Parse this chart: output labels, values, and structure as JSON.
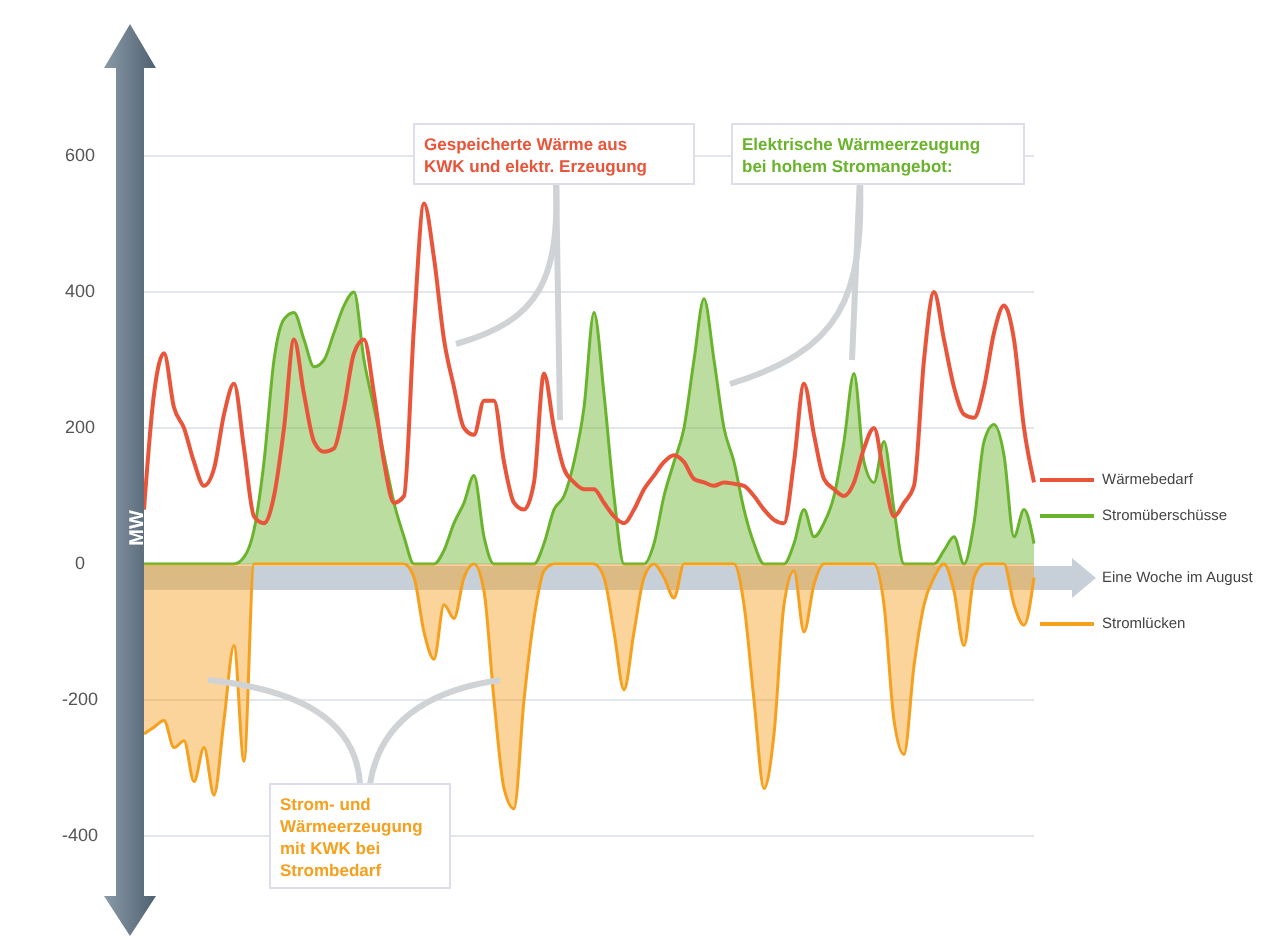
{
  "chart_data": {
    "type": "line",
    "xlabel": "Eine Woche im August",
    "ylabel": "MW",
    "categories": [
      null,
      null,
      null,
      null,
      null,
      null,
      null,
      null,
      null,
      null,
      null,
      null,
      null,
      null,
      null,
      null,
      null,
      null,
      null,
      null,
      null,
      null,
      null,
      null,
      null,
      null,
      null,
      null,
      null,
      null,
      null,
      null,
      null,
      null,
      null,
      null,
      null,
      null,
      null,
      null,
      null,
      null,
      null,
      null,
      null,
      null,
      null,
      null,
      null,
      null,
      null,
      null,
      null,
      null,
      null,
      null,
      null,
      null,
      null,
      null,
      null,
      null,
      null,
      null,
      null,
      null,
      null,
      null,
      null,
      null,
      null,
      null,
      null,
      null,
      null,
      null,
      null,
      null,
      null,
      null,
      null,
      null,
      null,
      null,
      null,
      null,
      null,
      null,
      null,
      null
    ],
    "series": [
      {
        "name": "Wärmebedarf",
        "type": "line",
        "color": "#e8553a",
        "values": [
          80,
          250,
          310,
          230,
          200,
          150,
          115,
          140,
          220,
          265,
          170,
          70,
          60,
          100,
          200,
          330,
          250,
          180,
          165,
          170,
          230,
          310,
          330,
          250,
          150,
          90,
          100,
          350,
          530,
          450,
          330,
          260,
          200,
          190,
          240,
          240,
          150,
          90,
          80,
          120,
          280,
          200,
          140,
          120,
          110,
          110,
          90,
          70,
          60,
          80,
          110,
          130,
          150,
          160,
          150,
          125,
          120,
          115,
          120,
          118,
          115,
          100,
          80,
          65,
          60,
          150,
          265,
          190,
          125,
          110,
          100,
          120,
          170,
          200,
          130,
          70,
          90,
          115,
          300,
          400,
          330,
          260,
          220,
          215,
          260,
          340,
          380,
          330,
          200,
          120
        ]
      },
      {
        "name": "Stromüberschüsse",
        "type": "area",
        "color": "#6ab42d",
        "values": [
          0,
          0,
          0,
          0,
          0,
          0,
          0,
          0,
          0,
          0,
          10,
          50,
          150,
          300,
          360,
          370,
          330,
          290,
          300,
          340,
          380,
          400,
          300,
          230,
          160,
          90,
          40,
          0,
          0,
          0,
          20,
          60,
          90,
          130,
          40,
          0,
          0,
          0,
          0,
          0,
          30,
          80,
          100,
          150,
          230,
          370,
          250,
          100,
          0,
          0,
          0,
          30,
          100,
          150,
          200,
          300,
          390,
          300,
          200,
          150,
          80,
          30,
          0,
          0,
          0,
          30,
          80,
          40,
          60,
          100,
          180,
          280,
          150,
          120,
          180,
          80,
          0,
          0,
          0,
          0,
          20,
          40,
          0,
          60,
          180,
          205,
          160,
          40,
          80,
          30
        ]
      },
      {
        "name": "Stromlücken",
        "type": "area",
        "color": "#f5a01e",
        "values": [
          -250,
          -240,
          -230,
          -270,
          -260,
          -320,
          -270,
          -340,
          -230,
          -120,
          -290,
          0,
          0,
          0,
          0,
          0,
          0,
          0,
          0,
          0,
          0,
          0,
          0,
          0,
          0,
          0,
          0,
          -20,
          -100,
          -140,
          -60,
          -80,
          -20,
          0,
          -40,
          -200,
          -330,
          -360,
          -200,
          -80,
          -10,
          0,
          0,
          0,
          0,
          0,
          -20,
          -100,
          -185,
          -100,
          -20,
          0,
          -20,
          -50,
          0,
          0,
          0,
          0,
          0,
          0,
          -60,
          -200,
          -330,
          -250,
          -60,
          -10,
          -100,
          -30,
          0,
          0,
          0,
          0,
          0,
          0,
          -60,
          -230,
          -280,
          -150,
          -60,
          -20,
          0,
          -40,
          -120,
          -20,
          0,
          0,
          0,
          -60,
          -90,
          -20
        ]
      }
    ],
    "ylim": [
      -400,
      600
    ],
    "yticks": [
      600,
      400,
      200,
      0,
      -200,
      -400
    ],
    "grid": "y",
    "tick_labels": "y",
    "legend": "right",
    "annotations": [
      "Gespeicherte Wärme aus\nKWK und elektr. Erzeugung",
      "Elektrische Wärmeerzeugung\nbei hohem Stromangebot:",
      "Strom- und\nWärmeerzeugung\nmit KWK bei\nStrombedarf"
    ]
  }
}
